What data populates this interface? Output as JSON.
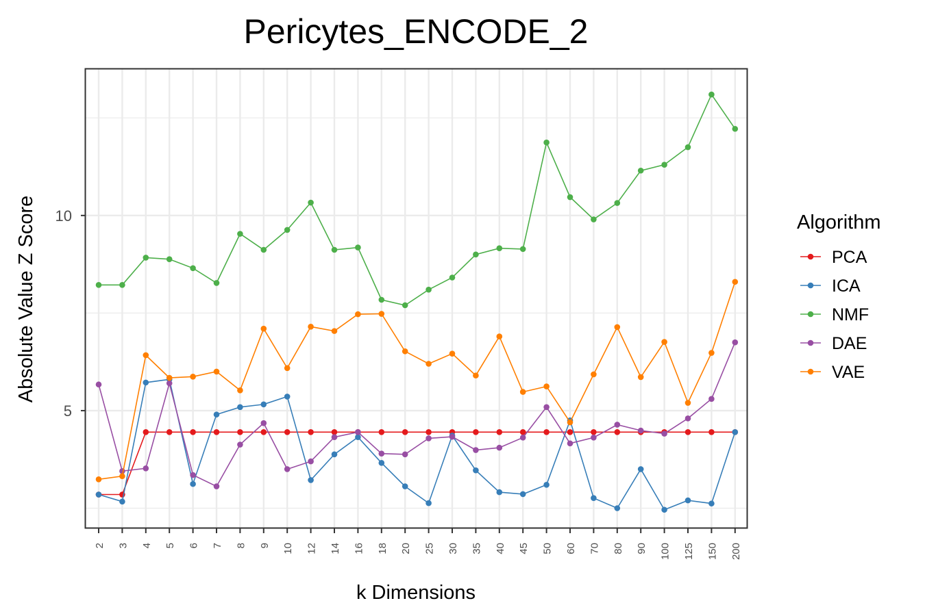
{
  "chart_data": {
    "type": "line",
    "title": "Pericytes_ENCODE_2",
    "xlabel": "k Dimensions",
    "ylabel": "Absolute Value Z Score",
    "categories": [
      "2",
      "3",
      "4",
      "5",
      "6",
      "7",
      "8",
      "9",
      "10",
      "12",
      "14",
      "16",
      "18",
      "20",
      "25",
      "30",
      "35",
      "40",
      "45",
      "50",
      "60",
      "70",
      "80",
      "90",
      "100",
      "125",
      "150",
      "200"
    ],
    "y_ticks": [
      5,
      10
    ],
    "ylim": [
      2.0,
      13.75
    ],
    "grid": true,
    "legend": {
      "title": "Algorithm",
      "position": "right"
    },
    "series": [
      {
        "name": "PCA",
        "color": "#e41a1c",
        "values": [
          2.85,
          2.85,
          4.45,
          4.45,
          4.45,
          4.45,
          4.45,
          4.45,
          4.45,
          4.45,
          4.45,
          4.45,
          4.45,
          4.45,
          4.45,
          4.45,
          4.45,
          4.45,
          4.45,
          4.45,
          4.45,
          4.45,
          4.45,
          4.45,
          4.45,
          4.45,
          4.45,
          4.45
        ]
      },
      {
        "name": "ICA",
        "color": "#377eb8",
        "values": [
          2.85,
          2.67,
          5.72,
          5.8,
          3.12,
          4.9,
          5.09,
          5.16,
          5.36,
          3.22,
          3.88,
          4.32,
          3.66,
          3.06,
          2.63,
          4.36,
          3.47,
          2.91,
          2.86,
          3.1,
          4.75,
          2.76,
          2.5,
          3.5,
          2.46,
          2.7,
          2.62,
          4.45
        ]
      },
      {
        "name": "NMF",
        "color": "#4daf4a",
        "values": [
          8.22,
          8.22,
          8.92,
          8.88,
          8.65,
          8.27,
          9.53,
          9.12,
          9.63,
          10.33,
          9.12,
          9.18,
          7.84,
          7.7,
          8.1,
          8.41,
          9.0,
          9.16,
          9.14,
          11.87,
          10.47,
          9.9,
          10.32,
          11.15,
          11.3,
          11.75,
          13.1,
          12.22
        ]
      },
      {
        "name": "DAE",
        "color": "#984ea3",
        "values": [
          5.67,
          3.45,
          3.52,
          5.7,
          3.35,
          3.06,
          4.13,
          4.68,
          3.5,
          3.7,
          4.32,
          4.45,
          3.9,
          3.88,
          4.29,
          4.33,
          3.99,
          4.05,
          4.31,
          5.09,
          4.16,
          4.31,
          4.64,
          4.49,
          4.41,
          4.8,
          5.3,
          6.75
        ]
      },
      {
        "name": "VAE",
        "color": "#ff7f00",
        "values": [
          3.24,
          3.32,
          6.42,
          5.84,
          5.87,
          6.0,
          5.52,
          7.1,
          6.09,
          7.15,
          7.04,
          7.47,
          7.48,
          6.52,
          6.2,
          6.46,
          5.9,
          6.9,
          5.48,
          5.62,
          4.7,
          5.93,
          7.14,
          5.86,
          6.76,
          5.2,
          6.48,
          8.3
        ]
      }
    ]
  }
}
